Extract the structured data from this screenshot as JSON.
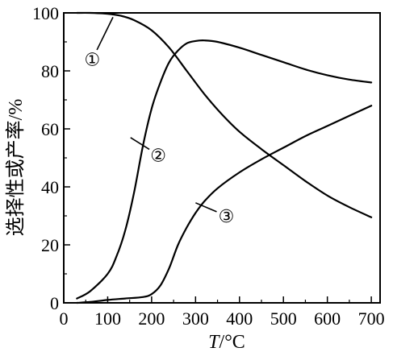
{
  "chart_data": {
    "type": "line",
    "ylabel": "选择性或产率/%",
    "xlabel_var": "T",
    "xlabel_unit": "/°C",
    "xlim": [
      0,
      720
    ],
    "ylim": [
      0,
      100
    ],
    "xticks": [
      0,
      100,
      200,
      300,
      400,
      500,
      600,
      700
    ],
    "yticks": [
      0,
      20,
      40,
      60,
      80,
      100
    ],
    "grid": false,
    "series": [
      {
        "name": "①",
        "x": [
          30,
          60,
          100,
          130,
          160,
          200,
          240,
          280,
          320,
          360,
          400,
          450,
          500,
          550,
          600,
          650,
          700
        ],
        "values": [
          100,
          100,
          99.7,
          99,
          97.5,
          94,
          88,
          80,
          72,
          65,
          59,
          53,
          47.5,
          42,
          37,
          33,
          29.5
        ]
      },
      {
        "name": "②",
        "x": [
          30,
          60,
          100,
          120,
          140,
          160,
          180,
          200,
          220,
          240,
          260,
          280,
          300,
          320,
          350,
          400,
          450,
          500,
          550,
          600,
          650,
          700
        ],
        "values": [
          1.5,
          4,
          10,
          16,
          25,
          38,
          54,
          67,
          76,
          83,
          87,
          89.5,
          90.3,
          90.5,
          90,
          88,
          85.5,
          83,
          80.5,
          78.5,
          77,
          76
        ]
      },
      {
        "name": "③",
        "x": [
          30,
          60,
          100,
          140,
          180,
          200,
          220,
          240,
          260,
          280,
          300,
          320,
          350,
          400,
          450,
          500,
          550,
          600,
          650,
          700
        ],
        "values": [
          0,
          0.3,
          1,
          1.5,
          2,
          3,
          6,
          12,
          20,
          26,
          31,
          35,
          39.5,
          45,
          49.5,
          53.5,
          57.5,
          61,
          64.5,
          68
        ]
      }
    ],
    "annotations": [
      {
        "label": "①",
        "pointer_x": 112,
        "pointer_y": 98.5,
        "label_x": 65,
        "label_y": 84
      },
      {
        "label": "②",
        "pointer_x": 152,
        "pointer_y": 57,
        "label_x": 215,
        "label_y": 51
      },
      {
        "label": "③",
        "pointer_x": 300,
        "pointer_y": 34.5,
        "label_x": 370,
        "label_y": 30
      }
    ]
  }
}
